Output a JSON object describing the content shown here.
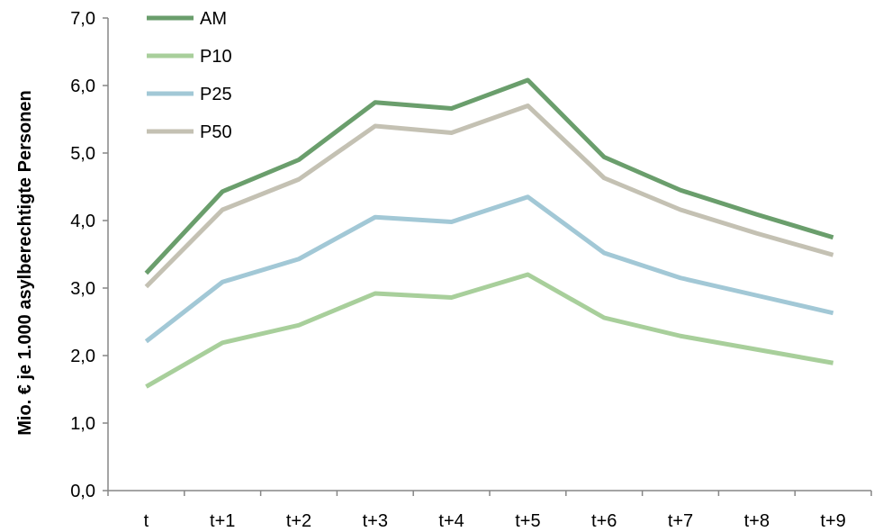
{
  "chart_data": {
    "type": "line",
    "title": "",
    "xlabel": "",
    "ylabel": "Mio. € je 1.000 asylberechtigte Personen",
    "categories": [
      "t",
      "t+1",
      "t+2",
      "t+3",
      "t+4",
      "t+5",
      "t+6",
      "t+7",
      "t+8",
      "t+9"
    ],
    "ylim": [
      0,
      7
    ],
    "yticks": [
      "0,0",
      "1,0",
      "2,0",
      "3,0",
      "4,0",
      "5,0",
      "6,0",
      "7,0"
    ],
    "grid": false,
    "legend_position": "top-left",
    "series": [
      {
        "name": "AM",
        "color": "#6a9e6c",
        "values": [
          3.22,
          4.43,
          4.9,
          5.75,
          5.66,
          6.08,
          4.94,
          4.45,
          4.09,
          3.75
        ]
      },
      {
        "name": "P10",
        "color": "#a8cf9b",
        "values": [
          1.54,
          2.19,
          2.45,
          2.92,
          2.86,
          3.2,
          2.56,
          2.29,
          2.09,
          1.89
        ]
      },
      {
        "name": "P25",
        "color": "#a2c8d6",
        "values": [
          2.21,
          3.09,
          3.43,
          4.05,
          3.98,
          4.35,
          3.52,
          3.15,
          2.89,
          2.63
        ]
      },
      {
        "name": "P50",
        "color": "#c4c1b3",
        "values": [
          3.02,
          4.16,
          4.61,
          5.4,
          5.3,
          5.7,
          4.63,
          4.16,
          3.81,
          3.49
        ]
      }
    ]
  }
}
